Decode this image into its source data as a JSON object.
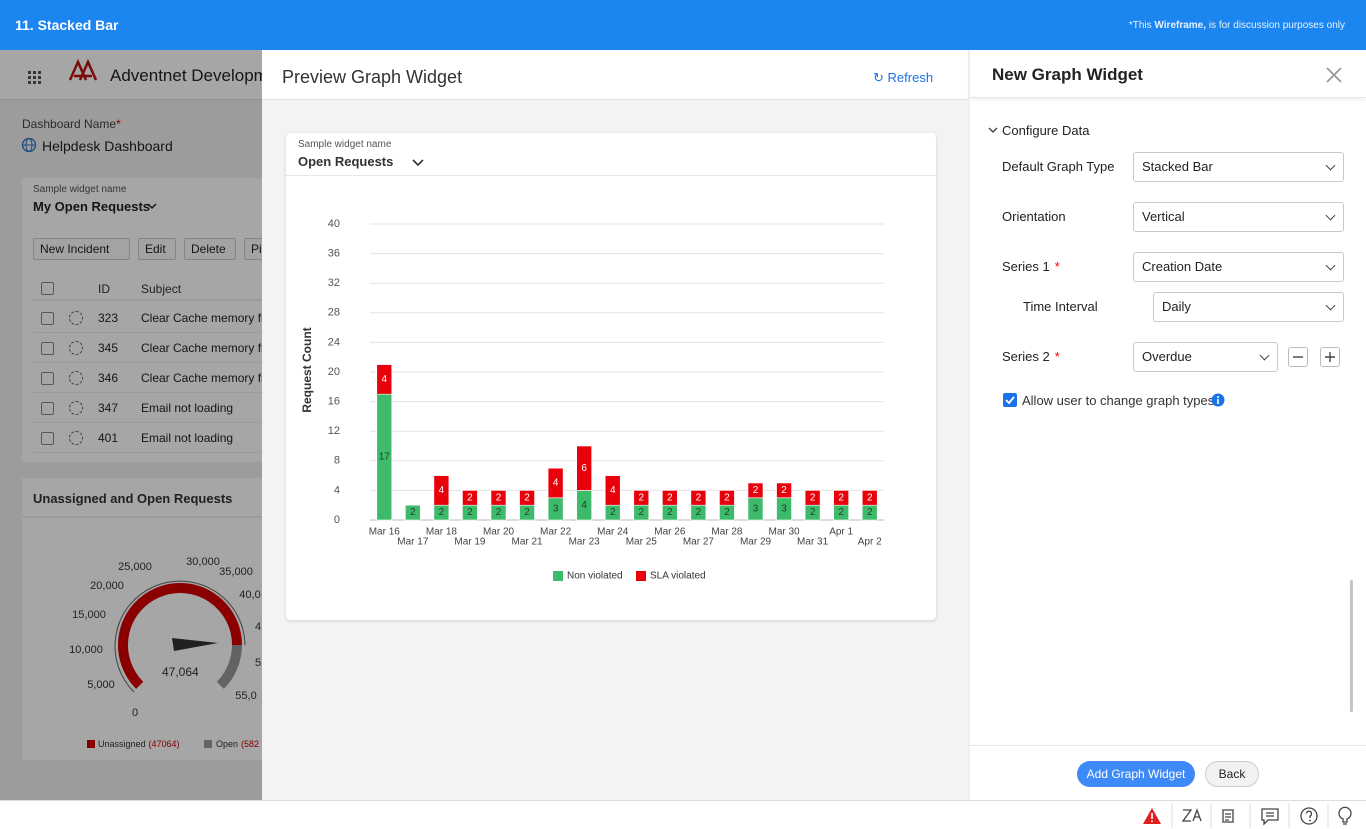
{
  "header": {
    "title": "11. Stacked Bar",
    "note_start": "*This",
    "note_bold": "Wireframe,",
    "note_end": "is for discussion purposes only"
  },
  "background": {
    "app_name": "Adventnet Developm",
    "dashboard_label": "Dashboard Name",
    "required": "*",
    "dashboard_name": "Helpdesk Dashboard",
    "widget_label": "Sample widget name",
    "widget_name": "My Open Requests",
    "buttons": [
      "New Incident",
      "Edit",
      "Delete",
      "Pi"
    ],
    "columns": [
      "ID",
      "Subject"
    ],
    "rows": [
      [
        "323",
        "Clear Cache memory fr"
      ],
      [
        "345",
        "Clear Cache memory fr"
      ],
      [
        "346",
        "Clear Cache memory fr"
      ],
      [
        "347",
        "Email not loading"
      ],
      [
        "401",
        "Email not loading"
      ]
    ],
    "gauge_title": "Unassigned and Open Requests",
    "gauge_labels": [
      "0",
      "5,000",
      "10,000",
      "15,000",
      "20,000",
      "25,000",
      "30,000",
      "35,000",
      "40,0",
      "4",
      "5",
      "55,0"
    ],
    "gauge_value": "47,064",
    "gauge_legend": [
      {
        "label": "Unassigned",
        "count": "(47064)"
      },
      {
        "label": "Open",
        "count": "(582"
      }
    ]
  },
  "preview": {
    "title": "Preview Graph Widget",
    "refresh": "Refresh",
    "widget_label": "Sample widget name",
    "widget_name": "Open Requests"
  },
  "chart_data": {
    "type": "bar",
    "stacked": true,
    "y_label": "Request Count",
    "categories": [
      "Mar 16",
      "Mar 17",
      "Mar 18",
      "Mar 19",
      "Mar 20",
      "Mar 21",
      "Mar 22",
      "Mar 23",
      "Mar 24",
      "Mar 25",
      "Mar 26",
      "Mar 27",
      "Mar 28",
      "Mar 29",
      "Mar 30",
      "Mar 31",
      "Apr 1",
      "Apr 2"
    ],
    "series": [
      {
        "name": "Non violated",
        "color": "#3dba6a",
        "values": [
          17,
          2,
          2,
          2,
          2,
          2,
          3,
          4,
          2,
          2,
          2,
          2,
          2,
          3,
          3,
          2,
          2,
          2
        ]
      },
      {
        "name": "SLA violated",
        "color": "#e8000b",
        "values": [
          4,
          null,
          4,
          2,
          2,
          2,
          4,
          6,
          4,
          2,
          2,
          2,
          2,
          2,
          2,
          2,
          2,
          2
        ]
      }
    ],
    "ylim": [
      0,
      40
    ],
    "yticks": [
      0,
      4,
      8,
      12,
      16,
      20,
      24,
      28,
      32,
      36,
      40
    ],
    "grid": true,
    "legend": "bottom"
  },
  "config": {
    "title": "New Graph Widget",
    "section": "Configure Data",
    "fields": [
      {
        "label": "Default Graph Type",
        "value": "Stacked Bar"
      },
      {
        "label": "Orientation",
        "value": "Vertical"
      },
      {
        "label": "Series 1",
        "required": "*",
        "value": "Creation Date"
      },
      {
        "label": "Time Interval",
        "value": "Daily"
      },
      {
        "label": "Series 2",
        "required": "*",
        "value": "Overdue"
      }
    ],
    "checkbox": "Allow user to change graph types",
    "add": "Add Graph Widget",
    "back": "Back"
  }
}
